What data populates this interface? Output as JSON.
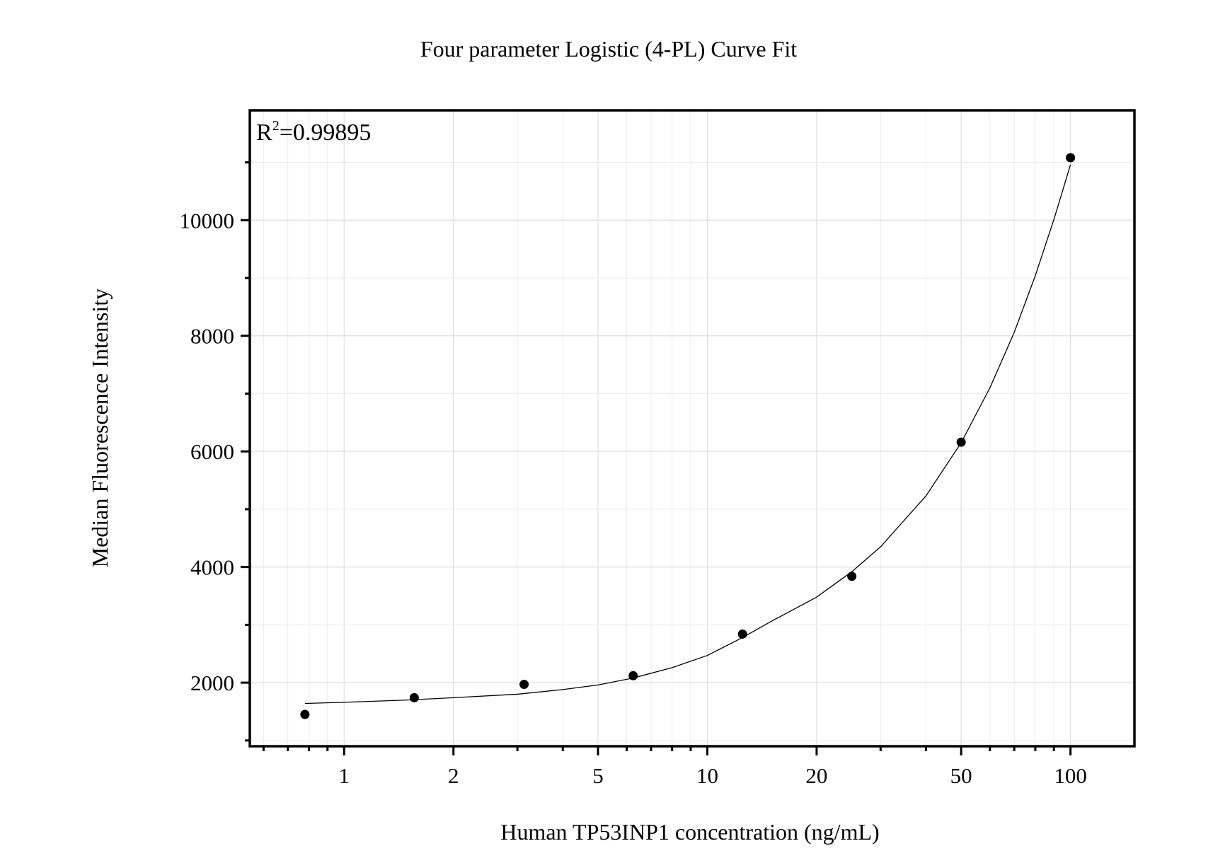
{
  "chart_data": {
    "type": "scatter",
    "title": "Four parameter Logistic (4-PL) Curve Fit",
    "xlabel": "Human TP53INP1 concentration (ng/mL)",
    "ylabel": "Median Fluorescence Intensity",
    "x_scale": "log",
    "xlim": [
      0.55,
      150
    ],
    "ylim": [
      900,
      11900
    ],
    "x_ticks": [
      1,
      2,
      5,
      10,
      20,
      50,
      100
    ],
    "x_tick_labels": [
      "1",
      "2",
      "5",
      "10",
      "20",
      "50",
      "100"
    ],
    "y_ticks": [
      2000,
      4000,
      6000,
      8000,
      10000
    ],
    "y_tick_labels": [
      "2000",
      "4000",
      "6000",
      "8000",
      "10000"
    ],
    "y_minor_ticks": [
      1000,
      3000,
      5000,
      7000,
      9000,
      11000
    ],
    "grid": true,
    "annotation": {
      "label": "R",
      "superscript": "2",
      "value": "=0.99895"
    },
    "points": {
      "x": [
        0.78,
        1.56,
        3.13,
        6.25,
        12.5,
        25,
        50,
        100
      ],
      "y": [
        1450,
        1740,
        1970,
        2120,
        2840,
        3840,
        6160,
        11080
      ]
    },
    "fit_curve": {
      "model": "4PL",
      "x": [
        0.78,
        1,
        1.5,
        2,
        3,
        4,
        5,
        6.25,
        8,
        10,
        12.5,
        15,
        20,
        25,
        30,
        40,
        50,
        60,
        70,
        80,
        90,
        100
      ],
      "y": [
        1640,
        1660,
        1700,
        1740,
        1800,
        1880,
        1960,
        2080,
        2260,
        2470,
        2780,
        3060,
        3480,
        3920,
        4350,
        5230,
        6150,
        7100,
        8060,
        9040,
        10010,
        10960
      ]
    }
  }
}
